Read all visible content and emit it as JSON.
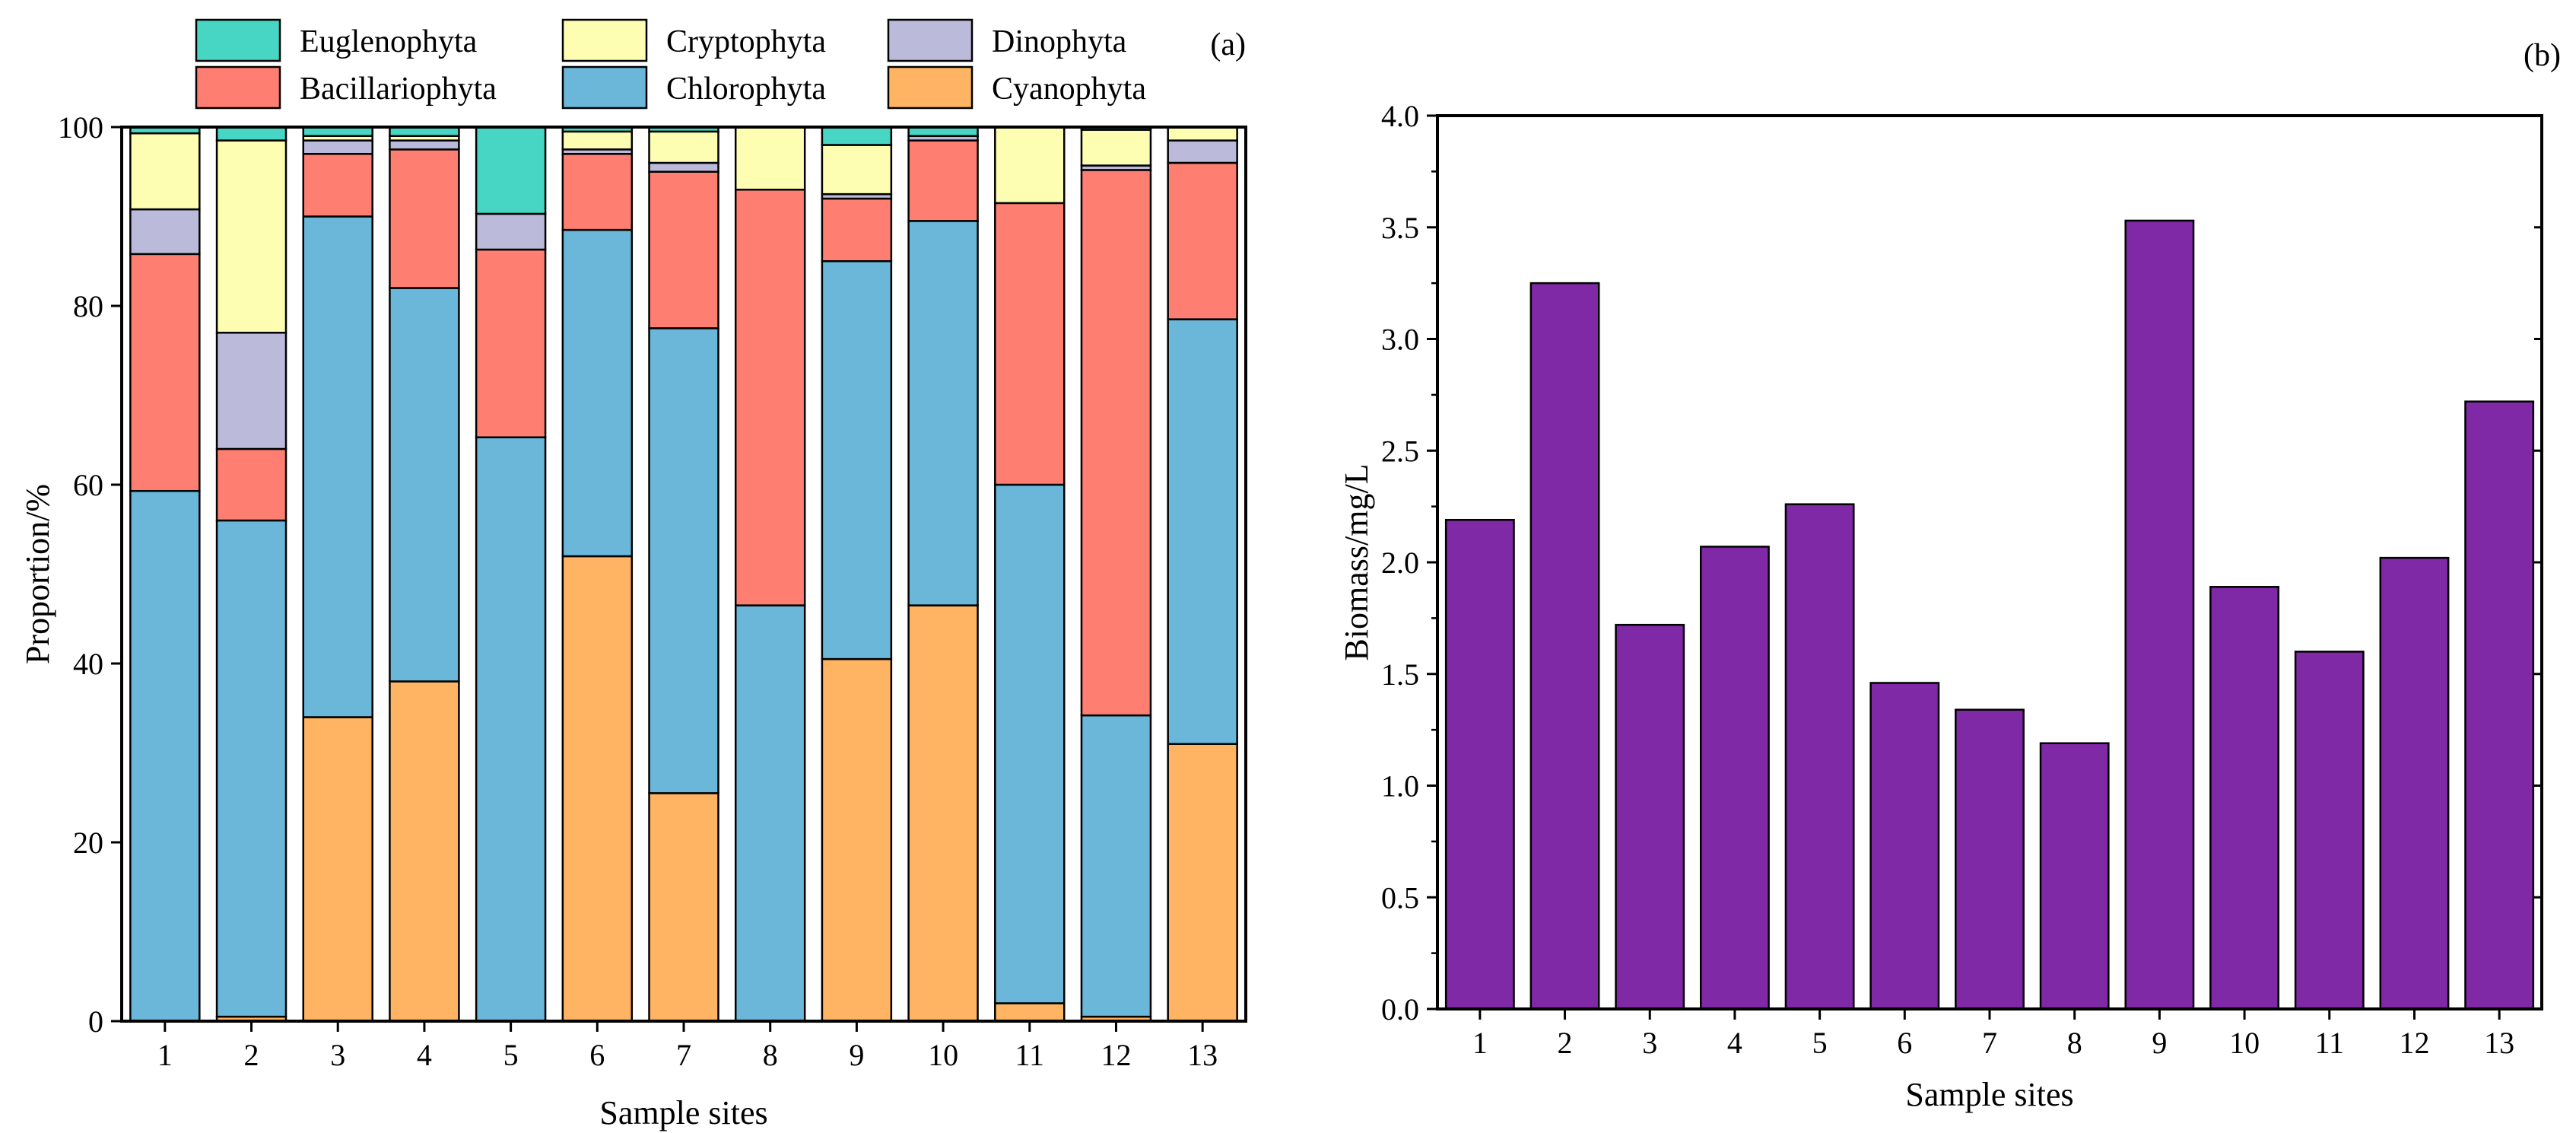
{
  "chart_data": [
    {
      "type": "bar",
      "stacked": true,
      "panel_label": "(a)",
      "xlabel": "Sample sites",
      "ylabel": "Proportion/%",
      "ylim": [
        0,
        100
      ],
      "yticks": [
        0,
        20,
        40,
        60,
        80,
        100
      ],
      "categories": [
        "1",
        "2",
        "3",
        "4",
        "5",
        "6",
        "7",
        "8",
        "9",
        "10",
        "11",
        "12",
        "13"
      ],
      "series": [
        {
          "name": "Cyanophyta",
          "color": "#FEB462",
          "values": [
            0,
            0.5,
            34,
            38,
            0,
            52,
            25.5,
            0,
            40.5,
            46.5,
            2,
            0.5,
            31
          ]
        },
        {
          "name": "Chlorophyta",
          "color": "#6AB7DA",
          "values": [
            59.3,
            55.5,
            56,
            44,
            65.3,
            36.5,
            52,
            46.5,
            44.5,
            43,
            58,
            33.7,
            47.5
          ]
        },
        {
          "name": "Bacillariophyta",
          "color": "#FE7F72",
          "values": [
            26.5,
            8,
            7,
            15.5,
            21,
            8.5,
            17.5,
            46.5,
            7,
            9,
            31.5,
            61,
            17.5
          ]
        },
        {
          "name": "Dinophyta",
          "color": "#BCBADA",
          "values": [
            5,
            13,
            1.5,
            1,
            4,
            0.5,
            1,
            0,
            0.5,
            0.5,
            0,
            0.5,
            2.5
          ]
        },
        {
          "name": "Cryptophyta",
          "color": "#FEFEB2",
          "values": [
            8.5,
            21.5,
            0.5,
            0.5,
            0,
            2,
            3.5,
            7,
            5.5,
            0,
            8.5,
            4,
            1.5
          ]
        },
        {
          "name": "Euglenophyta",
          "color": "#47D6C4",
          "values": [
            0.7,
            1.5,
            1,
            1,
            9.7,
            0.5,
            0.5,
            0,
            2,
            1,
            0,
            0.3,
            0
          ]
        }
      ],
      "legend": {
        "row1": [
          "Euglenophyta",
          "Cryptophyta",
          "Dinophyta"
        ],
        "row2": [
          "Bacillariophyta",
          "Chlorophyta",
          "Cyanophyta"
        ]
      }
    },
    {
      "type": "bar",
      "panel_label": "(b)",
      "xlabel": "Sample sites",
      "ylabel": "Biomass/mg/L",
      "ylim": [
        0,
        4.0
      ],
      "yticks": [
        "0.0",
        "0.5",
        "1.0",
        "1.5",
        "2.0",
        "2.5",
        "3.0",
        "3.5",
        "4.0"
      ],
      "categories": [
        "1",
        "2",
        "3",
        "4",
        "5",
        "6",
        "7",
        "8",
        "9",
        "10",
        "11",
        "12",
        "13"
      ],
      "values": [
        2.19,
        3.25,
        1.72,
        2.07,
        2.26,
        1.46,
        1.34,
        1.19,
        3.53,
        1.89,
        1.6,
        2.02,
        2.72
      ],
      "color": "#7F29A7"
    }
  ]
}
